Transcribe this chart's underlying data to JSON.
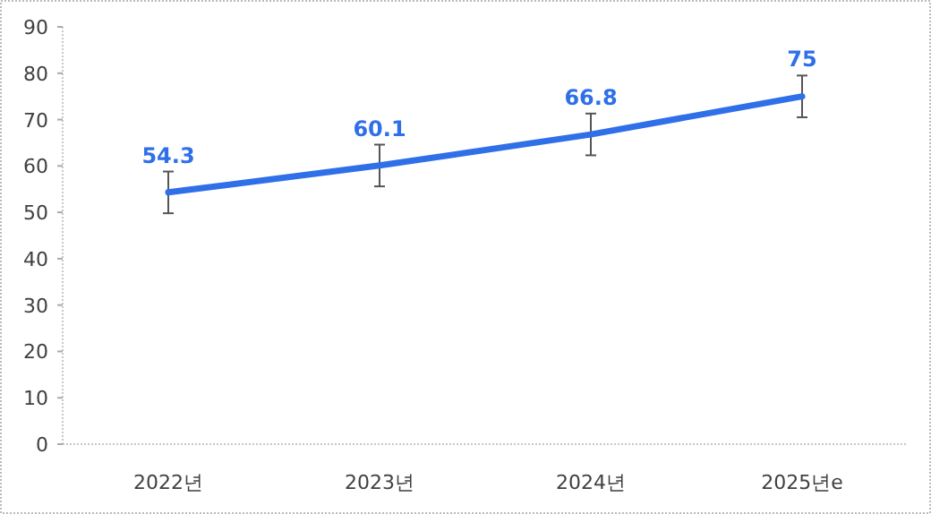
{
  "chart_data": {
    "type": "line",
    "categories": [
      "2022년",
      "2023년",
      "2024년",
      "2025년e"
    ],
    "series": [
      {
        "color": "#2f6fe8",
        "values": [
          54.3,
          60.1,
          66.8,
          75
        ],
        "errors": [
          4.5,
          4.5,
          4.5,
          4.5
        ]
      }
    ],
    "ylim": [
      0,
      90
    ],
    "yticks": [
      0,
      10,
      20,
      30,
      40,
      50,
      60,
      70,
      80,
      90
    ],
    "data_labels": true,
    "grid": false,
    "marker": "none",
    "line_style": "solid"
  }
}
